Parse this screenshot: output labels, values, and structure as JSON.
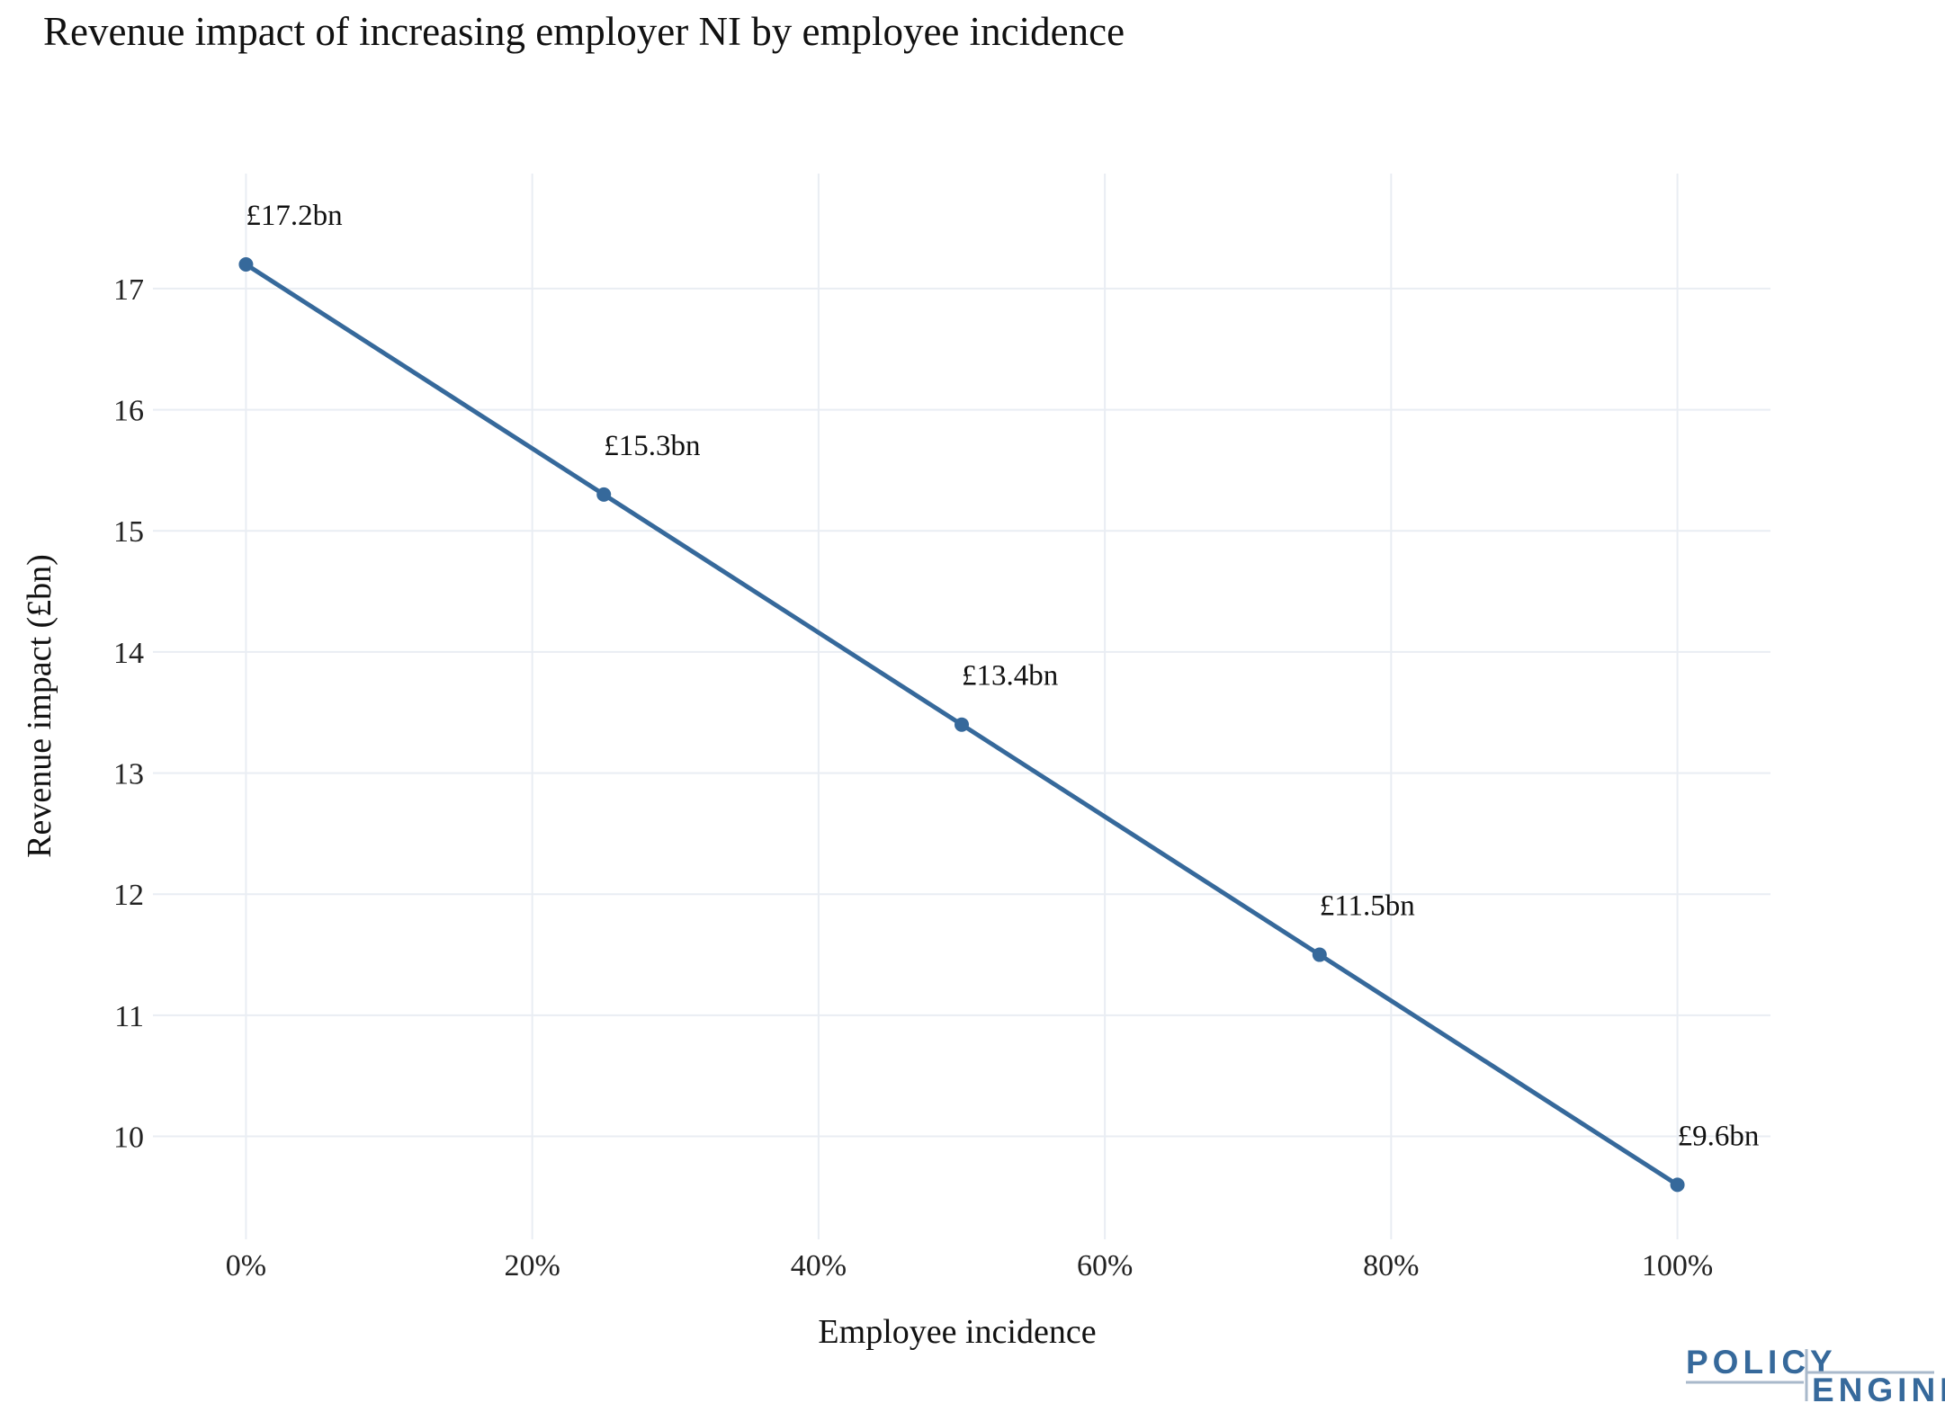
{
  "chart_data": {
    "type": "line",
    "title": "Revenue impact of increasing employer NI by employee incidence",
    "xlabel": "Employee incidence",
    "ylabel": "Revenue impact (£bn)",
    "x": [
      0,
      25,
      50,
      75,
      100
    ],
    "xlim": [
      -6.5,
      106.5
    ],
    "ylim": [
      9.15,
      17.95
    ],
    "x_ticks": [
      0,
      20,
      40,
      60,
      80,
      100
    ],
    "x_tick_labels": [
      "0%",
      "20%",
      "40%",
      "60%",
      "80%",
      "100%"
    ],
    "y_ticks": [
      10,
      11,
      12,
      13,
      14,
      15,
      16,
      17
    ],
    "y_tick_labels": [
      "10",
      "11",
      "12",
      "13",
      "14",
      "15",
      "16",
      "17"
    ],
    "grid": true,
    "series": [
      {
        "name": "Revenue impact",
        "color": "#36699b",
        "values": [
          17.2,
          15.3,
          13.4,
          11.5,
          9.6
        ],
        "labels": [
          "£17.2bn",
          "£15.3bn",
          "£13.4bn",
          "£11.5bn",
          "£9.6bn"
        ]
      }
    ]
  },
  "logo": {
    "line1": "POLICY",
    "line2": "ENGINE",
    "color": "#36699b",
    "rule_color": "#a9b9cb"
  }
}
